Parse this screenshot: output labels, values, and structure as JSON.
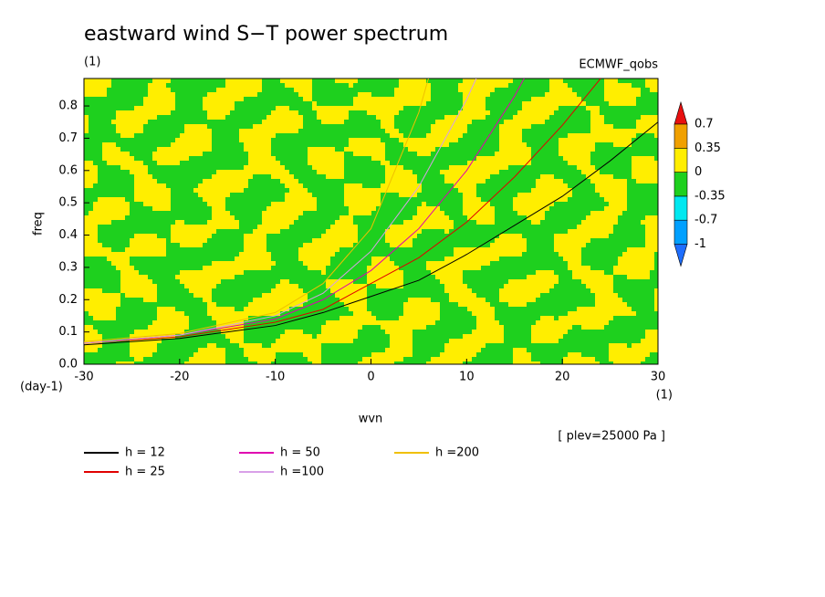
{
  "chart_data": {
    "type": "line",
    "title": "eastward wind S−T power spectrum",
    "subtitle": "(1)",
    "source_label": "ECMWF_qobs",
    "xlabel": "wvn",
    "ylabel": "freq",
    "x_unit": "(1)",
    "y_unit": "(day-1)",
    "annotation": "[ plev=25000 Pa ]",
    "xlim": [
      -30,
      30
    ],
    "ylim": [
      0,
      0.885
    ],
    "xticks": [
      -30,
      -20,
      -10,
      0,
      10,
      20,
      30
    ],
    "yticks": [
      {
        "value": 0,
        "label": "0.0"
      },
      0.1,
      0.2,
      0.3,
      0.4,
      0.5,
      0.6,
      0.7,
      0.8
    ],
    "colorbar": {
      "levels": [
        -1,
        -0.7,
        -0.35,
        0,
        0.35,
        0.7
      ],
      "colors": [
        "#1e6eff",
        "#00a0ff",
        "#00e8f0",
        "#1ed01e",
        "#ffee00",
        "#f0a000",
        "#e81010"
      ]
    },
    "series": [
      {
        "name": "h = 12",
        "color": "#000000",
        "x": [
          -30,
          -20,
          -10,
          -5,
          0,
          5,
          10,
          15,
          20,
          25,
          30
        ],
        "values": [
          0.06,
          0.08,
          0.12,
          0.16,
          0.21,
          0.26,
          0.34,
          0.43,
          0.52,
          0.63,
          0.75
        ]
      },
      {
        "name": "h = 25",
        "color": "#e00000",
        "x": [
          -30,
          -20,
          -10,
          -5,
          0,
          5,
          10,
          15,
          20,
          24
        ],
        "values": [
          0.065,
          0.085,
          0.13,
          0.17,
          0.25,
          0.33,
          0.44,
          0.58,
          0.74,
          0.885
        ]
      },
      {
        "name": "h = 50",
        "color": "#e000b0",
        "x": [
          -30,
          -20,
          -10,
          -5,
          0,
          5,
          10,
          15,
          16
        ],
        "values": [
          0.065,
          0.09,
          0.14,
          0.2,
          0.29,
          0.42,
          0.6,
          0.83,
          0.885
        ]
      },
      {
        "name": "h =100",
        "color": "#d8a0e8",
        "x": [
          -30,
          -20,
          -10,
          -5,
          0,
          5,
          10,
          11
        ],
        "values": [
          0.065,
          0.09,
          0.15,
          0.22,
          0.35,
          0.55,
          0.82,
          0.885
        ]
      },
      {
        "name": "h =200",
        "color": "#f0c000",
        "x": [
          -30,
          -20,
          -10,
          -5,
          0,
          5,
          6
        ],
        "values": [
          0.07,
          0.095,
          0.16,
          0.25,
          0.42,
          0.78,
          0.885
        ]
      }
    ]
  }
}
